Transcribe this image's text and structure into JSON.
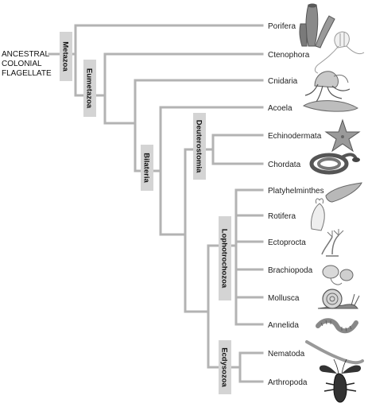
{
  "root_label": [
    "ANCESTRAL",
    "COLONIAL",
    "FLAGELLATE"
  ],
  "clades": {
    "metazoa": "Metazoa",
    "eumetazoa": "Eumetazoa",
    "bilateria": "Bilateria",
    "deuterostomia": "Deuterostomia",
    "lophotrochozoa": "Lophotrochozoa",
    "ecdysozoa": "Ecdysozoa"
  },
  "taxa": [
    {
      "name": "Porifera",
      "icon": "sponge-icon"
    },
    {
      "name": "Ctenophora",
      "icon": "comb-jelly-icon"
    },
    {
      "name": "Cnidaria",
      "icon": "jellyfish-icon"
    },
    {
      "name": "Acoela",
      "icon": "acoel-flatworm-icon"
    },
    {
      "name": "Echinodermata",
      "icon": "sea-star-icon"
    },
    {
      "name": "Chordata",
      "icon": "snake-icon"
    },
    {
      "name": "Platyhelminthes",
      "icon": "flatworm-icon"
    },
    {
      "name": "Rotifera",
      "icon": "rotifer-icon"
    },
    {
      "name": "Ectoprocta",
      "icon": "bryozoan-icon"
    },
    {
      "name": "Brachiopoda",
      "icon": "brachiopod-icon"
    },
    {
      "name": "Mollusca",
      "icon": "snail-icon"
    },
    {
      "name": "Annelida",
      "icon": "earthworm-icon"
    },
    {
      "name": "Nematoda",
      "icon": "roundworm-icon"
    },
    {
      "name": "Arthropoda",
      "icon": "lobster-icon"
    }
  ],
  "colors": {
    "branch": "#b3b3b3",
    "label_box": "#d4d4d4"
  }
}
